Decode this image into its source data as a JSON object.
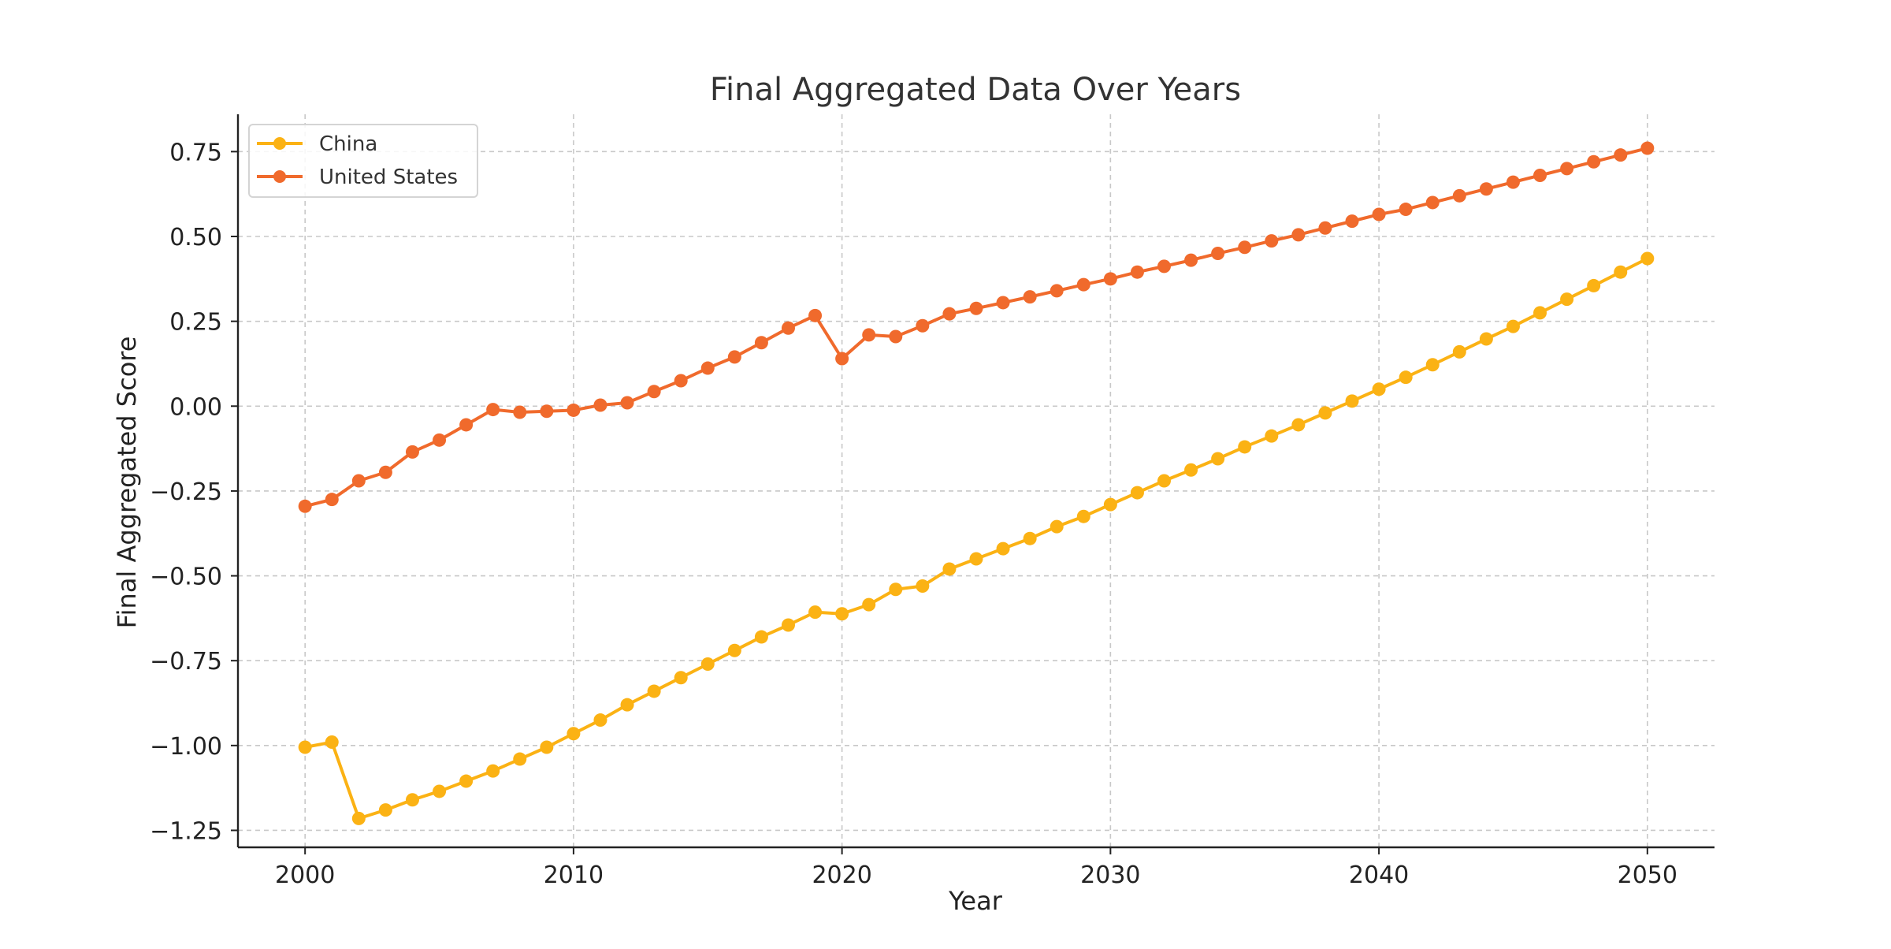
{
  "chart_data": {
    "type": "line",
    "title": "Final Aggregated Data Over Years",
    "xlabel": "Year",
    "ylabel": "Final Aggregated Score",
    "xlim": [
      1997.5,
      2052.5
    ],
    "ylim": [
      -1.3,
      0.86
    ],
    "x_ticks": [
      2000,
      2010,
      2020,
      2030,
      2040,
      2050
    ],
    "x_tick_labels": [
      "2000",
      "2010",
      "2020",
      "2030",
      "2040",
      "2050"
    ],
    "y_ticks": [
      -1.25,
      -1.0,
      -0.75,
      -0.5,
      -0.25,
      0.0,
      0.25,
      0.5,
      0.75
    ],
    "y_tick_labels": [
      "−1.25",
      "−1.00",
      "−0.75",
      "−0.50",
      "−0.25",
      "0.00",
      "0.25",
      "0.50",
      "0.75"
    ],
    "grid": true,
    "legend_position": "top-left",
    "x": [
      2000,
      2001,
      2002,
      2003,
      2004,
      2005,
      2006,
      2007,
      2008,
      2009,
      2010,
      2011,
      2012,
      2013,
      2014,
      2015,
      2016,
      2017,
      2018,
      2019,
      2020,
      2021,
      2022,
      2023,
      2024,
      2025,
      2026,
      2027,
      2028,
      2029,
      2030,
      2031,
      2032,
      2033,
      2034,
      2035,
      2036,
      2037,
      2038,
      2039,
      2040,
      2041,
      2042,
      2043,
      2044,
      2045,
      2046,
      2047,
      2048,
      2049,
      2050
    ],
    "series": [
      {
        "name": "China",
        "color": "#FBB214",
        "values": [
          -1.005,
          -0.99,
          -1.215,
          -1.19,
          -1.16,
          -1.135,
          -1.105,
          -1.075,
          -1.04,
          -1.005,
          -0.965,
          -0.925,
          -0.88,
          -0.84,
          -0.8,
          -0.76,
          -0.72,
          -0.68,
          -0.645,
          -0.607,
          -0.612,
          -0.585,
          -0.54,
          -0.53,
          -0.48,
          -0.45,
          -0.42,
          -0.39,
          -0.355,
          -0.325,
          -0.29,
          -0.255,
          -0.22,
          -0.188,
          -0.155,
          -0.12,
          -0.088,
          -0.055,
          -0.02,
          0.015,
          0.05,
          0.085,
          0.122,
          0.16,
          0.198,
          0.235,
          0.275,
          0.315,
          0.355,
          0.395,
          0.435
        ]
      },
      {
        "name": "United States",
        "color": "#F06A2C",
        "values": [
          -0.295,
          -0.275,
          -0.22,
          -0.195,
          -0.135,
          -0.1,
          -0.055,
          -0.01,
          -0.018,
          -0.015,
          -0.012,
          0.003,
          0.01,
          0.043,
          0.075,
          0.112,
          0.145,
          0.187,
          0.23,
          0.267,
          0.14,
          0.21,
          0.205,
          0.237,
          0.272,
          0.288,
          0.305,
          0.322,
          0.34,
          0.358,
          0.375,
          0.395,
          0.412,
          0.43,
          0.45,
          0.468,
          0.487,
          0.505,
          0.525,
          0.545,
          0.565,
          0.58,
          0.6,
          0.62,
          0.64,
          0.66,
          0.68,
          0.7,
          0.72,
          0.74,
          0.76
        ]
      }
    ]
  }
}
